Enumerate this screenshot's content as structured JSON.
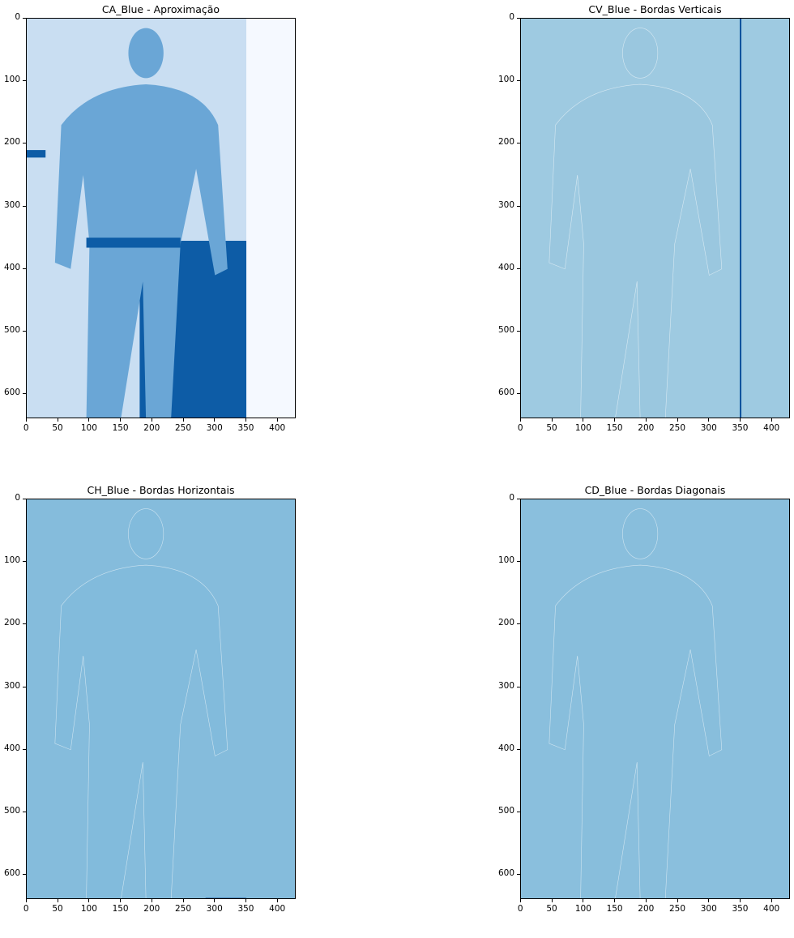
{
  "panels": [
    {
      "id": "ca",
      "title": "CA_Blue - Aproximação",
      "bg": "#f5f9ff",
      "fg": "#6aa6d6",
      "accent": "#0d5ca6"
    },
    {
      "id": "cv",
      "title": "CV_Blue - Bordas Verticais",
      "bg": "#9ecae1",
      "fg": "#8fc1dd",
      "accent": "#08519c"
    },
    {
      "id": "ch",
      "title": "CH_Blue - Bordas Horizontais",
      "bg": "#85bcdc",
      "fg": "#7db6da",
      "accent": "#08519c"
    },
    {
      "id": "cd",
      "title": "CD_Blue - Bordas Diagonais",
      "bg": "#8abfdd",
      "fg": "#84bbdb",
      "accent": "#4a8fc4"
    }
  ],
  "axes": {
    "x_ticks": [
      "0",
      "50",
      "100",
      "150",
      "200",
      "250",
      "300",
      "350",
      "400"
    ],
    "y_ticks": [
      "0",
      "100",
      "200",
      "300",
      "400",
      "500",
      "600"
    ],
    "x_max": 430,
    "y_max": 640
  }
}
